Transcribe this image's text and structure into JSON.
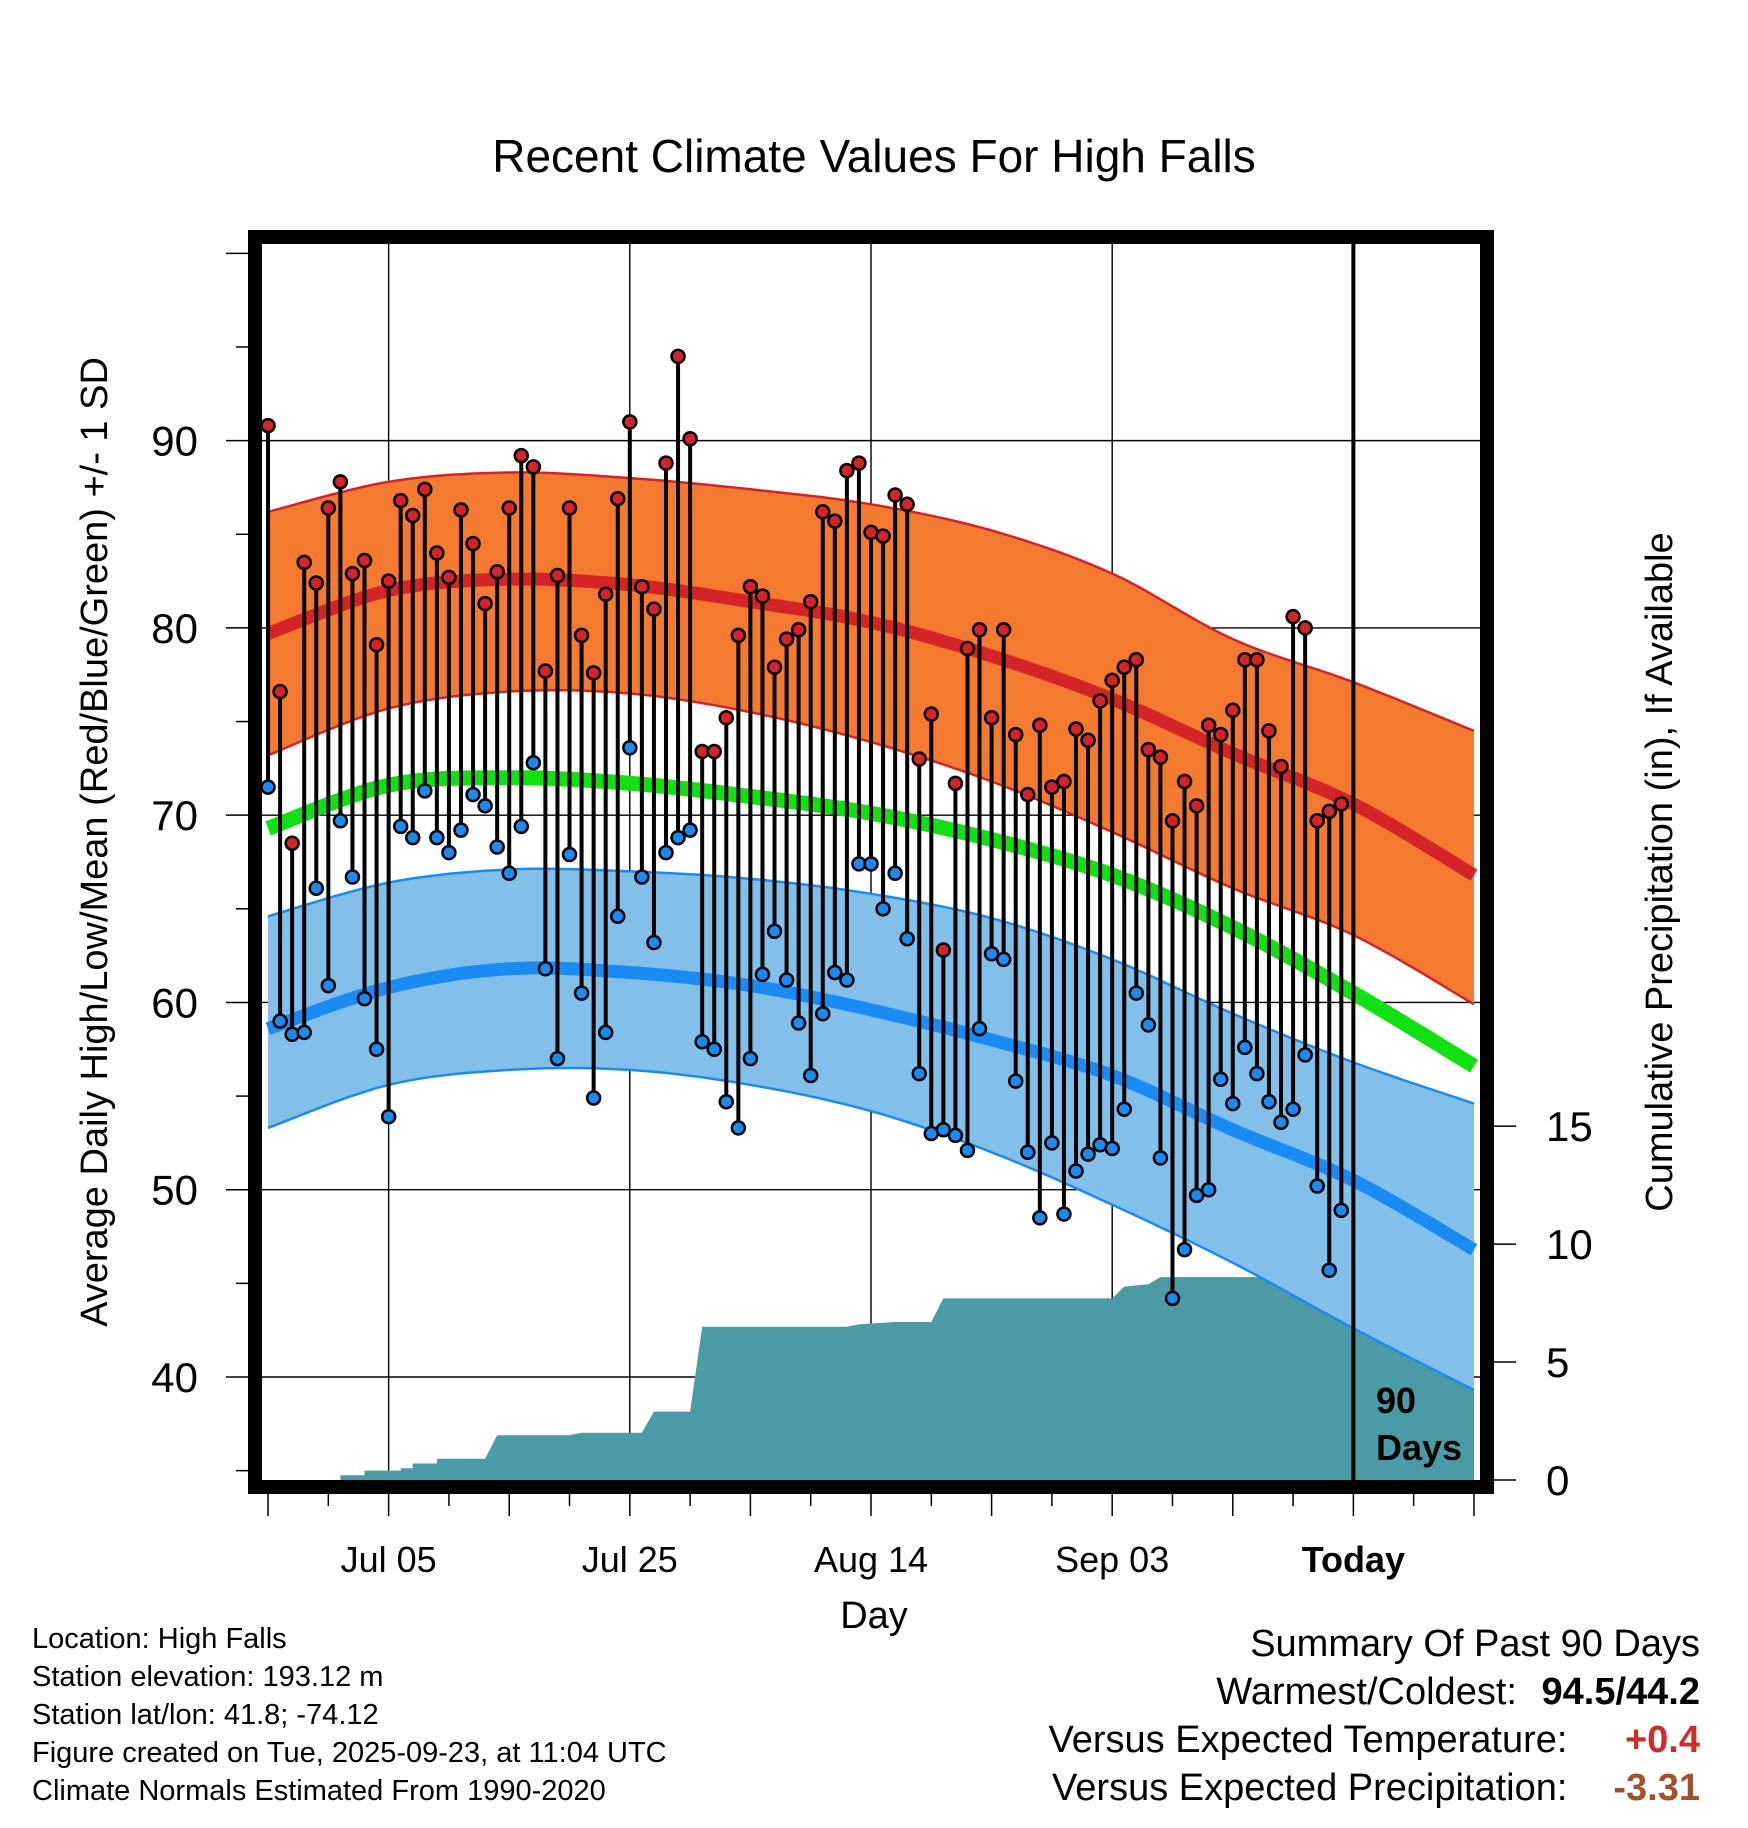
{
  "chart_data": {
    "type": "line",
    "title": "Recent Climate Values For High Falls",
    "xlabel": "Day",
    "ylabel": "Average Daily High/Low/Mean (Red/Blue/Green) +/- 1 SD",
    "y2label": "Cumulative Precipitation (in), If Available",
    "ylim": [
      34.5,
      100.5
    ],
    "y2lim": [
      0,
      52.4
    ],
    "xlim": [
      -0.5,
      100.5
    ],
    "yticks": [
      40,
      50,
      60,
      70,
      80,
      90
    ],
    "y2ticks": [
      0,
      5,
      10,
      15
    ],
    "xticks": [
      {
        "day": 10,
        "label": "Jul 05"
      },
      {
        "day": 30,
        "label": "Jul 25"
      },
      {
        "day": 50,
        "label": "Aug 14"
      },
      {
        "day": 70,
        "label": "Sep 03"
      },
      {
        "day": 90,
        "label": "Today"
      }
    ],
    "today_day": 90,
    "today_label_line1": "90",
    "today_label_line2": "Days",
    "normals": {
      "high_mean": [
        [
          0,
          79.7
        ],
        [
          10,
          82.0
        ],
        [
          20,
          82.6
        ],
        [
          30,
          82.3
        ],
        [
          40,
          81.4
        ],
        [
          50,
          80.3
        ],
        [
          60,
          78.5
        ],
        [
          70,
          76.2
        ],
        [
          80,
          73.3
        ],
        [
          90,
          70.6
        ],
        [
          100,
          66.8
        ]
      ],
      "high_upper": [
        [
          0,
          86.2
        ],
        [
          10,
          87.8
        ],
        [
          20,
          88.3
        ],
        [
          30,
          88.0
        ],
        [
          40,
          87.4
        ],
        [
          50,
          86.6
        ],
        [
          60,
          85.2
        ],
        [
          70,
          82.9
        ],
        [
          80,
          79.4
        ],
        [
          90,
          77.1
        ],
        [
          100,
          74.5
        ]
      ],
      "high_lower": [
        [
          0,
          73.2
        ],
        [
          10,
          75.7
        ],
        [
          20,
          76.6
        ],
        [
          30,
          76.5
        ],
        [
          40,
          75.5
        ],
        [
          50,
          73.9
        ],
        [
          60,
          71.8
        ],
        [
          70,
          69.1
        ],
        [
          80,
          66.1
        ],
        [
          90,
          63.6
        ],
        [
          100,
          59.9
        ]
      ],
      "mean": [
        [
          0,
          69.3
        ],
        [
          10,
          71.6
        ],
        [
          20,
          72.0
        ],
        [
          30,
          71.7
        ],
        [
          40,
          71.0
        ],
        [
          50,
          70.1
        ],
        [
          60,
          68.7
        ],
        [
          70,
          66.8
        ],
        [
          80,
          64.0
        ],
        [
          90,
          60.5
        ],
        [
          100,
          56.6
        ]
      ],
      "low_mean": [
        [
          0,
          58.6
        ],
        [
          10,
          60.8
        ],
        [
          20,
          61.8
        ],
        [
          30,
          61.6
        ],
        [
          40,
          60.9
        ],
        [
          50,
          59.6
        ],
        [
          60,
          58.0
        ],
        [
          70,
          56.1
        ],
        [
          80,
          53.2
        ],
        [
          90,
          50.5
        ],
        [
          100,
          46.8
        ]
      ],
      "low_upper": [
        [
          0,
          64.6
        ],
        [
          10,
          66.4
        ],
        [
          20,
          67.1
        ],
        [
          30,
          67.0
        ],
        [
          40,
          66.6
        ],
        [
          50,
          65.8
        ],
        [
          60,
          64.5
        ],
        [
          70,
          62.3
        ],
        [
          80,
          59.4
        ],
        [
          90,
          56.8
        ],
        [
          100,
          54.6
        ]
      ],
      "low_lower": [
        [
          0,
          53.3
        ],
        [
          10,
          55.6
        ],
        [
          20,
          56.4
        ],
        [
          30,
          56.4
        ],
        [
          40,
          55.6
        ],
        [
          50,
          54.2
        ],
        [
          60,
          52.0
        ],
        [
          70,
          49.2
        ],
        [
          80,
          46.1
        ],
        [
          90,
          42.6
        ],
        [
          100,
          39.3
        ]
      ]
    },
    "daily": [
      {
        "day": 0,
        "high": 90.8,
        "low": 71.5
      },
      {
        "day": 1,
        "high": 76.6,
        "low": 59.0
      },
      {
        "day": 2,
        "high": 68.5,
        "low": 58.3
      },
      {
        "day": 3,
        "high": 83.5,
        "low": 58.4
      },
      {
        "day": 4,
        "high": 82.4,
        "low": 66.1
      },
      {
        "day": 5,
        "high": 86.4,
        "low": 60.9
      },
      {
        "day": 6,
        "high": 87.8,
        "low": 69.7
      },
      {
        "day": 7,
        "high": 82.9,
        "low": 66.7
      },
      {
        "day": 8,
        "high": 83.6,
        "low": 60.2
      },
      {
        "day": 9,
        "high": 79.1,
        "low": 57.5
      },
      {
        "day": 10,
        "high": 82.5,
        "low": 53.9
      },
      {
        "day": 11,
        "high": 86.8,
        "low": 69.4
      },
      {
        "day": 12,
        "high": 86.0,
        "low": 68.8
      },
      {
        "day": 13,
        "high": 87.4,
        "low": 71.3
      },
      {
        "day": 14,
        "high": 84.0,
        "low": 68.8
      },
      {
        "day": 15,
        "high": 82.7,
        "low": 68.0
      },
      {
        "day": 16,
        "high": 86.3,
        "low": 69.2
      },
      {
        "day": 17,
        "high": 84.5,
        "low": 71.1
      },
      {
        "day": 18,
        "high": 81.3,
        "low": 70.5
      },
      {
        "day": 19,
        "high": 83.0,
        "low": 68.3
      },
      {
        "day": 20,
        "high": 86.4,
        "low": 66.9
      },
      {
        "day": 21,
        "high": 89.2,
        "low": 69.4
      },
      {
        "day": 22,
        "high": 88.6,
        "low": 72.8
      },
      {
        "day": 23,
        "high": 77.7,
        "low": 61.8
      },
      {
        "day": 24,
        "high": 82.8,
        "low": 57.0
      },
      {
        "day": 25,
        "high": 86.4,
        "low": 67.9
      },
      {
        "day": 26,
        "high": 79.6,
        "low": 60.5
      },
      {
        "day": 27,
        "high": 77.6,
        "low": 54.9
      },
      {
        "day": 28,
        "high": 81.8,
        "low": 58.4
      },
      {
        "day": 29,
        "high": 86.9,
        "low": 64.6
      },
      {
        "day": 30,
        "high": 91.0,
        "low": 73.6
      },
      {
        "day": 31,
        "high": 82.2,
        "low": 66.7
      },
      {
        "day": 32,
        "high": 81.0,
        "low": 63.2
      },
      {
        "day": 33,
        "high": 88.8,
        "low": 68.0
      },
      {
        "day": 34,
        "high": 94.5,
        "low": 68.8
      },
      {
        "day": 35,
        "high": 90.1,
        "low": 69.2
      },
      {
        "day": 36,
        "high": 73.4,
        "low": 57.9
      },
      {
        "day": 37,
        "high": 73.4,
        "low": 57.5
      },
      {
        "day": 38,
        "high": 75.2,
        "low": 54.7
      },
      {
        "day": 39,
        "high": 79.6,
        "low": 53.3
      },
      {
        "day": 40,
        "high": 82.2,
        "low": 57.0
      },
      {
        "day": 41,
        "high": 81.7,
        "low": 61.5
      },
      {
        "day": 42,
        "high": 77.9,
        "low": 63.8
      },
      {
        "day": 43,
        "high": 79.4,
        "low": 61.2
      },
      {
        "day": 44,
        "high": 79.9,
        "low": 58.9
      },
      {
        "day": 45,
        "high": 81.4,
        "low": 56.1
      },
      {
        "day": 46,
        "high": 86.2,
        "low": 59.4
      },
      {
        "day": 47,
        "high": 85.7,
        "low": 61.6
      },
      {
        "day": 48,
        "high": 88.4,
        "low": 61.2
      },
      {
        "day": 49,
        "high": 88.8,
        "low": 67.4
      },
      {
        "day": 50,
        "high": 85.1,
        "low": 67.4
      },
      {
        "day": 51,
        "high": 84.9,
        "low": 65.0
      },
      {
        "day": 52,
        "high": 87.1,
        "low": 66.9
      },
      {
        "day": 53,
        "high": 86.6,
        "low": 63.4
      },
      {
        "day": 54,
        "high": 73.0,
        "low": 56.2
      },
      {
        "day": 55,
        "high": 75.4,
        "low": 53.0
      },
      {
        "day": 56,
        "high": 62.8,
        "low": 53.2
      },
      {
        "day": 57,
        "high": 71.7,
        "low": 52.9
      },
      {
        "day": 58,
        "high": 78.9,
        "low": 52.1
      },
      {
        "day": 59,
        "high": 79.9,
        "low": 58.6
      },
      {
        "day": 60,
        "high": 75.2,
        "low": 62.6
      },
      {
        "day": 61,
        "high": 79.9,
        "low": 62.3
      },
      {
        "day": 62,
        "high": 74.3,
        "low": 55.8
      },
      {
        "day": 63,
        "high": 71.1,
        "low": 52.0
      },
      {
        "day": 64,
        "high": 74.8,
        "low": 48.5
      },
      {
        "day": 65,
        "high": 71.5,
        "low": 52.5
      },
      {
        "day": 66,
        "high": 71.8,
        "low": 48.7
      },
      {
        "day": 67,
        "high": 74.6,
        "low": 51.0
      },
      {
        "day": 68,
        "high": 74.0,
        "low": 51.9
      },
      {
        "day": 69,
        "high": 76.1,
        "low": 52.4
      },
      {
        "day": 70,
        "high": 77.2,
        "low": 52.2
      },
      {
        "day": 71,
        "high": 77.9,
        "low": 54.3
      },
      {
        "day": 72,
        "high": 78.3,
        "low": 60.5
      },
      {
        "day": 73,
        "high": 73.5,
        "low": 58.8
      },
      {
        "day": 74,
        "high": 73.1,
        "low": 51.7
      },
      {
        "day": 75,
        "high": 69.7,
        "low": 44.2
      },
      {
        "day": 76,
        "high": 71.8,
        "low": 46.8
      },
      {
        "day": 77,
        "high": 70.5,
        "low": 49.7
      },
      {
        "day": 78,
        "high": 74.8,
        "low": 50.0
      },
      {
        "day": 79,
        "high": 74.3,
        "low": 55.9
      },
      {
        "day": 80,
        "high": 75.6,
        "low": 54.6
      },
      {
        "day": 81,
        "high": 78.3,
        "low": 57.6
      },
      {
        "day": 82,
        "high": 78.3,
        "low": 56.2
      },
      {
        "day": 83,
        "high": 74.5,
        "low": 54.7
      },
      {
        "day": 84,
        "high": 72.6,
        "low": 53.6
      },
      {
        "day": 85,
        "high": 80.6,
        "low": 54.3
      },
      {
        "day": 86,
        "high": 80.0,
        "low": 57.2
      },
      {
        "day": 87,
        "high": 69.7,
        "low": 50.2
      },
      {
        "day": 88,
        "high": 70.2,
        "low": 45.7
      },
      {
        "day": 89,
        "high": 70.6,
        "low": 48.9
      }
    ],
    "precip_cumulative": [
      [
        6,
        0.0
      ],
      [
        6,
        0.2
      ],
      [
        8,
        0.2
      ],
      [
        8,
        0.4
      ],
      [
        11,
        0.4
      ],
      [
        11,
        0.5
      ],
      [
        12,
        0.5
      ],
      [
        12,
        0.7
      ],
      [
        14,
        0.7
      ],
      [
        14,
        0.9
      ],
      [
        18,
        0.9
      ],
      [
        19,
        1.9
      ],
      [
        25,
        1.9
      ],
      [
        26,
        2.0
      ],
      [
        31,
        2.0
      ],
      [
        32,
        2.9
      ],
      [
        35,
        2.9
      ],
      [
        36,
        6.5
      ],
      [
        48,
        6.5
      ],
      [
        49,
        6.6
      ],
      [
        52,
        6.7
      ],
      [
        55,
        6.7
      ],
      [
        56,
        7.7
      ],
      [
        70,
        7.7
      ],
      [
        71,
        8.2
      ],
      [
        73,
        8.3
      ],
      [
        74,
        8.6
      ],
      [
        100,
        8.6
      ]
    ]
  },
  "info": {
    "location": "Location: High Falls",
    "elevation": "Station elevation: 193.12 m",
    "latlon": "Station lat/lon: 41.8; -74.12",
    "created": "Figure created on Tue, 2025-09-23, at 11:04 UTC",
    "normals": "Climate Normals Estimated From 1990-2020"
  },
  "summary": {
    "heading": "Summary Of Past 90 Days",
    "warm_label": "Warmest/Coldest:",
    "warm_value": "94.5/44.2",
    "temp_label": "Versus Expected Temperature:",
    "temp_value": "+0.4",
    "temp_color": "#d02a2a",
    "precip_label": "Versus Expected Precipitation:",
    "precip_value": "-3.31",
    "precip_color": "#a0522d"
  },
  "colors": {
    "high_band": "#f47a30",
    "high_line": "#d42428",
    "high_edge": "#d42428",
    "mean_line": "#11e011",
    "low_band": "#82c0ea",
    "low_line": "#1a8bf2",
    "low_edge": "#1a8bf2",
    "precip_fill": "#4a9ba6",
    "high_dot": "#d42428",
    "low_dot": "#1a8bf2"
  }
}
